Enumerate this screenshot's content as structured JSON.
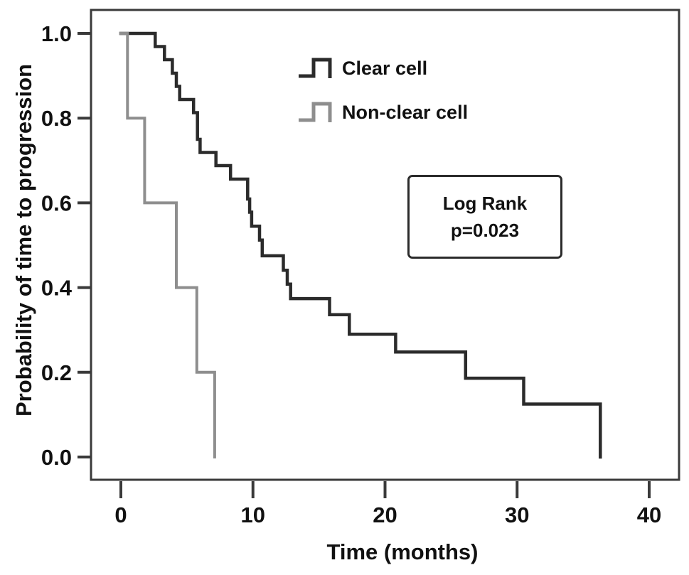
{
  "chart_data": {
    "type": "line",
    "subtype": "kaplan-meier-step",
    "title": "",
    "xlabel": "Time (months)",
    "ylabel": "Probability of time to progression",
    "xlim": [
      0,
      40
    ],
    "ylim": [
      0,
      1
    ],
    "x_ticks": [
      0,
      10,
      20,
      30,
      40
    ],
    "y_ticks": [
      0.0,
      0.2,
      0.4,
      0.6,
      0.8,
      1.0
    ],
    "grid": false,
    "frame_color": "#3a3a3a",
    "legend_position": "upper-right-inside",
    "legend": [
      {
        "name": "Clear cell",
        "color": "#2b2b2b"
      },
      {
        "name": "Non-clear cell",
        "color": "#8e8e8e"
      }
    ],
    "annotation": {
      "line1": "Log Rank",
      "line2": "p=0.023"
    },
    "series": [
      {
        "name": "Clear cell",
        "color": "#2b2b2b",
        "width": 4.5,
        "points": [
          [
            0,
            1.0
          ],
          [
            2.6,
            0.969
          ],
          [
            3.3,
            0.938
          ],
          [
            3.9,
            0.906
          ],
          [
            4.2,
            0.875
          ],
          [
            4.45,
            0.844
          ],
          [
            5.5,
            0.813
          ],
          [
            5.8,
            0.75
          ],
          [
            6.0,
            0.719
          ],
          [
            7.2,
            0.688
          ],
          [
            8.3,
            0.656
          ],
          [
            9.6,
            0.609
          ],
          [
            9.75,
            0.578
          ],
          [
            9.9,
            0.545
          ],
          [
            10.5,
            0.512
          ],
          [
            10.7,
            0.475
          ],
          [
            12.3,
            0.441
          ],
          [
            12.6,
            0.408
          ],
          [
            12.85,
            0.374
          ],
          [
            15.8,
            0.336
          ],
          [
            17.3,
            0.29
          ],
          [
            20.8,
            0.248
          ],
          [
            26.1,
            0.186
          ],
          [
            30.5,
            0.125
          ],
          [
            36.3,
            0.0
          ]
        ]
      },
      {
        "name": "Non-clear cell",
        "color": "#8e8e8e",
        "width": 4,
        "points": [
          [
            0,
            1.0
          ],
          [
            0.5,
            0.8
          ],
          [
            1.8,
            0.6
          ],
          [
            4.2,
            0.4
          ],
          [
            5.75,
            0.2
          ],
          [
            7.1,
            0.0
          ]
        ]
      }
    ]
  }
}
